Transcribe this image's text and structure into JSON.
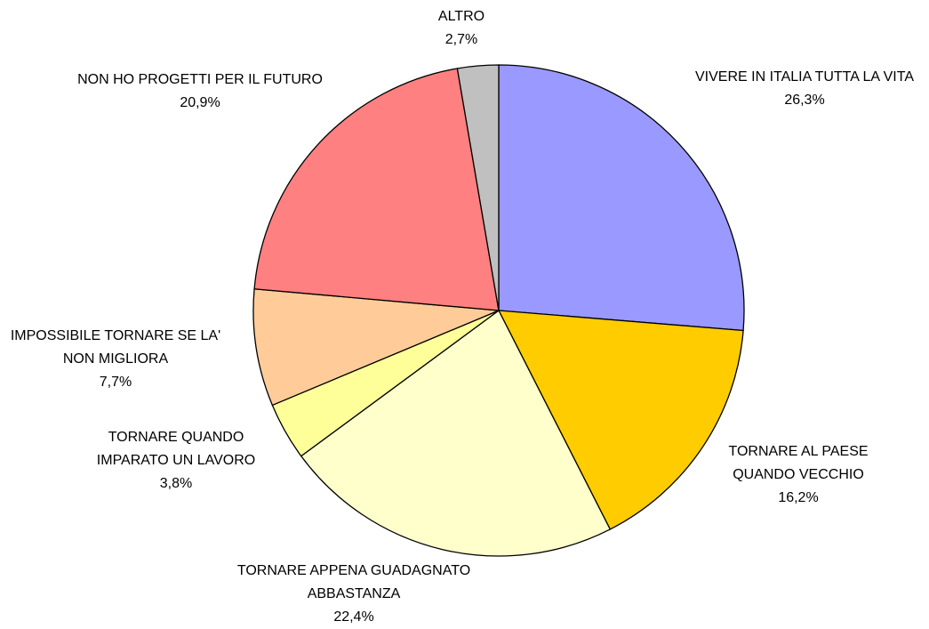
{
  "chart_data": {
    "type": "pie",
    "categories": [
      "VIVERE IN ITALIA TUTTA LA VITA",
      "TORNARE AL PAESE QUANDO VECCHIO",
      "TORNARE APPENA GUADAGNATO ABBASTANZA",
      "TORNARE QUANDO IMPARATO UN LAVORO",
      "IMPOSSIBILE TORNARE SE LA' NON MIGLIORA",
      "NON HO PROGETTI PER IL FUTURO",
      "ALTRO"
    ],
    "values": [
      26.3,
      16.2,
      22.4,
      3.8,
      7.7,
      20.9,
      2.7
    ],
    "value_labels": [
      "26,3%",
      "16,2%",
      "22,4%",
      "3,8%",
      "7,7%",
      "20,9%",
      "2,7%"
    ],
    "colors": [
      "#9999ff",
      "#ffcc00",
      "#ffffcc",
      "#ffff99",
      "#ffcc99",
      "#ff8080",
      "#c0c0c0"
    ]
  }
}
